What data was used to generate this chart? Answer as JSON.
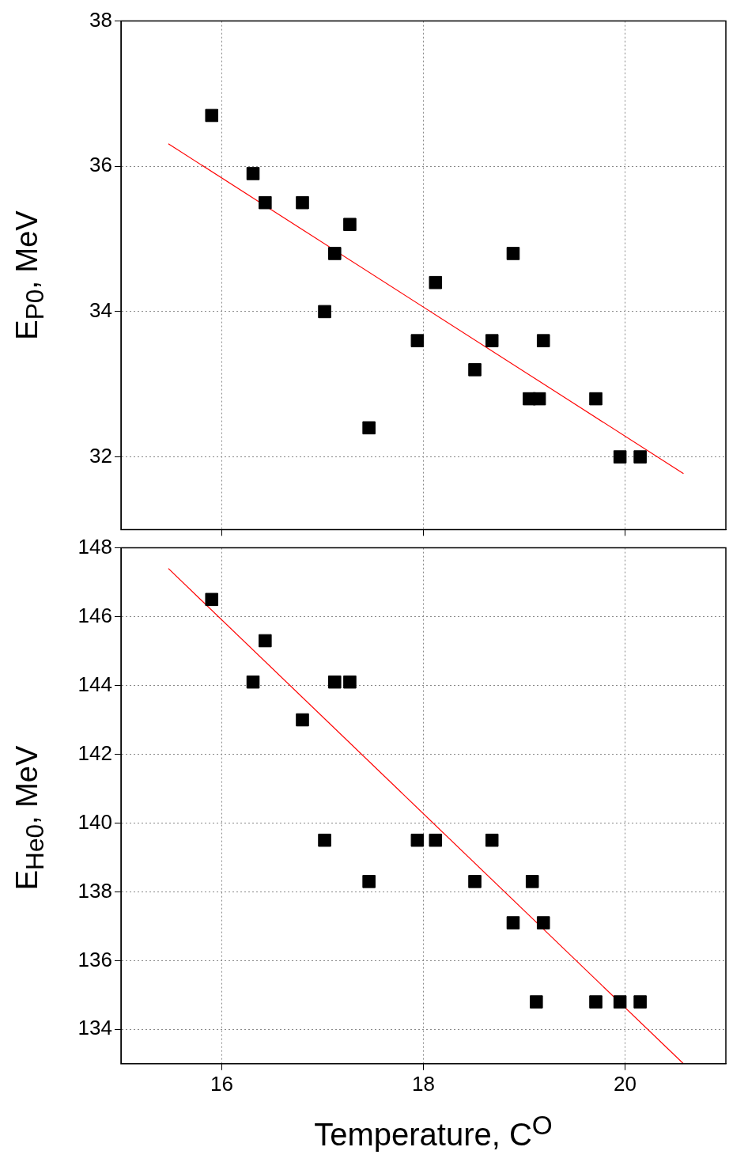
{
  "chart_data": [
    {
      "type": "scatter",
      "ylabel": "E$_{P0}$, MeV",
      "xlim": [
        15,
        21
      ],
      "xticks": [
        16,
        18,
        20
      ],
      "ylim": [
        31,
        38
      ],
      "yticks": [
        32,
        34,
        36,
        38
      ],
      "grid": true,
      "legend": false,
      "marker": "square",
      "tick_labels": "y",
      "series": [
        {
          "color": "#000000",
          "x": [
            15.9,
            16.31,
            16.43,
            16.8,
            17.27,
            17.12,
            17.02,
            17.46,
            17.94,
            18.12,
            18.51,
            18.68,
            18.89,
            19.19,
            19.05,
            19.15,
            19.71,
            19.95,
            20.15
          ],
          "values": [
            36.7,
            35.9,
            35.5,
            35.5,
            35.2,
            34.8,
            34.0,
            32.4,
            33.6,
            34.4,
            33.2,
            33.6,
            34.8,
            33.6,
            32.8,
            32.8,
            32.8,
            32.0,
            32.0
          ]
        },
        {
          "type": "line",
          "color": "#ff0000",
          "marker": "none",
          "line_style": "solid",
          "x": [
            15.47,
            20.58
          ],
          "values": [
            36.31,
            31.77
          ]
        }
      ]
    },
    {
      "type": "scatter",
      "xlabel": "Temperature, C$^{O}$",
      "ylabel": "E$_{He0}$, MeV",
      "xlim": [
        15,
        21
      ],
      "xticks": [
        16,
        18,
        20
      ],
      "ylim": [
        133,
        148
      ],
      "yticks": [
        134,
        136,
        138,
        140,
        142,
        144,
        146,
        148
      ],
      "grid": true,
      "legend": false,
      "marker": "square",
      "series": [
        {
          "color": "#000000",
          "x": [
            15.9,
            16.31,
            16.43,
            16.8,
            17.12,
            17.27,
            17.02,
            17.46,
            17.94,
            18.12,
            18.51,
            18.68,
            18.89,
            19.08,
            19.19,
            19.12,
            19.71,
            19.95,
            20.15
          ],
          "values": [
            146.5,
            144.1,
            145.3,
            143.0,
            144.1,
            144.1,
            139.5,
            138.3,
            139.5,
            139.5,
            138.3,
            139.5,
            137.1,
            138.3,
            137.1,
            134.8,
            134.8,
            134.8,
            134.8
          ]
        },
        {
          "type": "line",
          "color": "#ff0000",
          "marker": "none",
          "line_style": "solid",
          "x": [
            15.47,
            20.58
          ],
          "values": [
            147.4,
            133.0
          ]
        }
      ]
    }
  ]
}
